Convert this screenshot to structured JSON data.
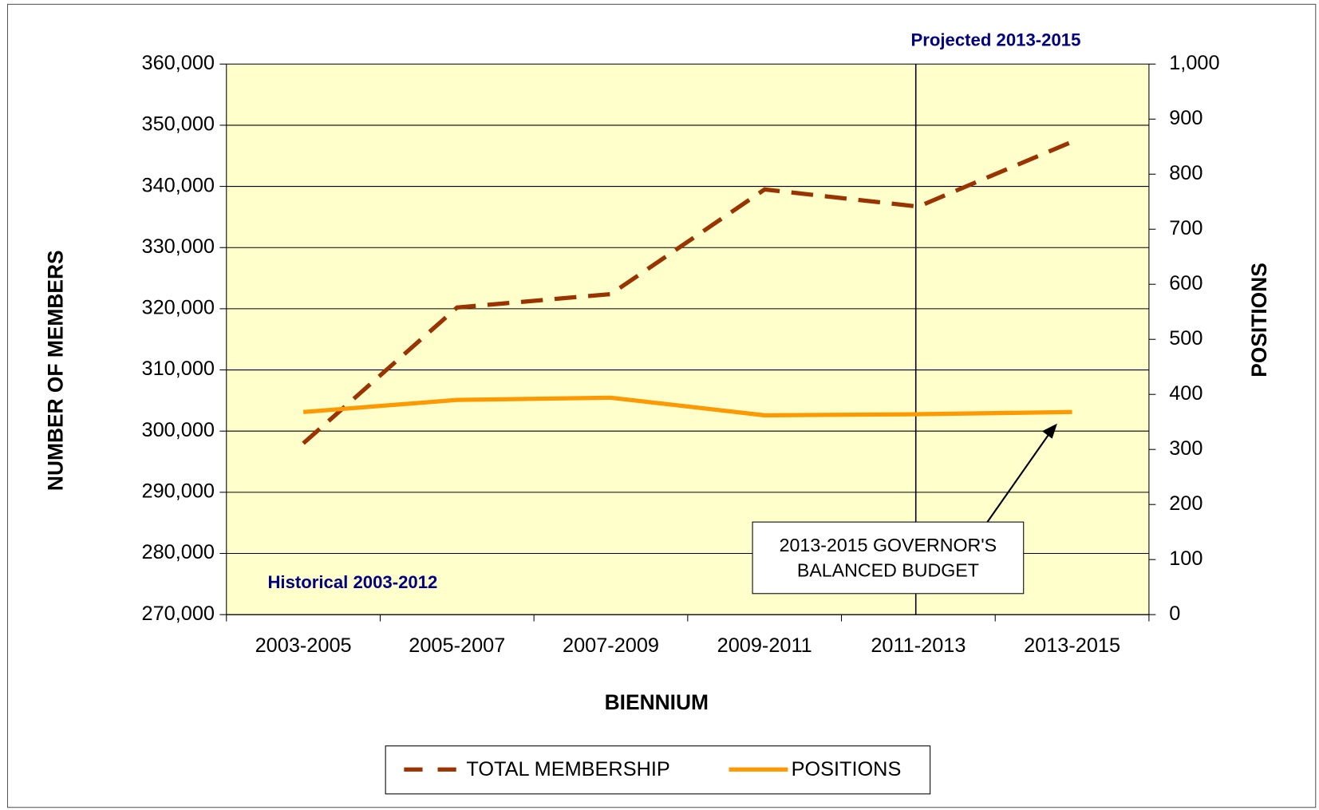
{
  "chart_data": {
    "type": "line",
    "x_label": "BIENNIUM",
    "y_label": "NUMBER OF MEMBERS",
    "y2_label": "POSITIONS",
    "categories": [
      "2003-2005",
      "2005-2007",
      "2007-2009",
      "2009-2011",
      "2011-2013",
      "2013-2015"
    ],
    "series": [
      {
        "name": "TOTAL MEMBERSHIP",
        "color": "#993300",
        "style": "dashed",
        "values": [
          298000,
          320200,
          322400,
          339500,
          336700,
          347300
        ]
      },
      {
        "name": "POSITIONS",
        "color": "#ff9900",
        "style": "solid",
        "axis": "y2",
        "values": [
          368,
          390,
          394,
          362,
          364,
          368
        ]
      }
    ],
    "ylim": [
      270000,
      360000
    ],
    "yticks": [
      {
        "value": 270000,
        "label": "270,000"
      },
      {
        "value": 280000,
        "label": "280,000"
      },
      {
        "value": 290000,
        "label": "290,000"
      },
      {
        "value": 300000,
        "label": "300,000"
      },
      {
        "value": 310000,
        "label": "310,000"
      },
      {
        "value": 320000,
        "label": "320,000"
      },
      {
        "value": 330000,
        "label": "330,000"
      },
      {
        "value": 340000,
        "label": "340,000"
      },
      {
        "value": 350000,
        "label": "350,000"
      },
      {
        "value": 360000,
        "label": "360,000"
      }
    ],
    "y2lim": [
      0,
      1000
    ],
    "y2ticks": [
      0,
      100,
      200,
      300,
      400,
      500,
      600,
      700,
      800,
      900,
      {
        "value": 1000,
        "label": "1,000"
      }
    ],
    "grid": true,
    "legend": "bottom",
    "annotations": {
      "projected": "Projected 2013-2015",
      "historical": "Historical 2003-2012",
      "budget": [
        "2013-2015 GOVERNOR'S",
        "BALANCED BUDGET"
      ]
    }
  }
}
